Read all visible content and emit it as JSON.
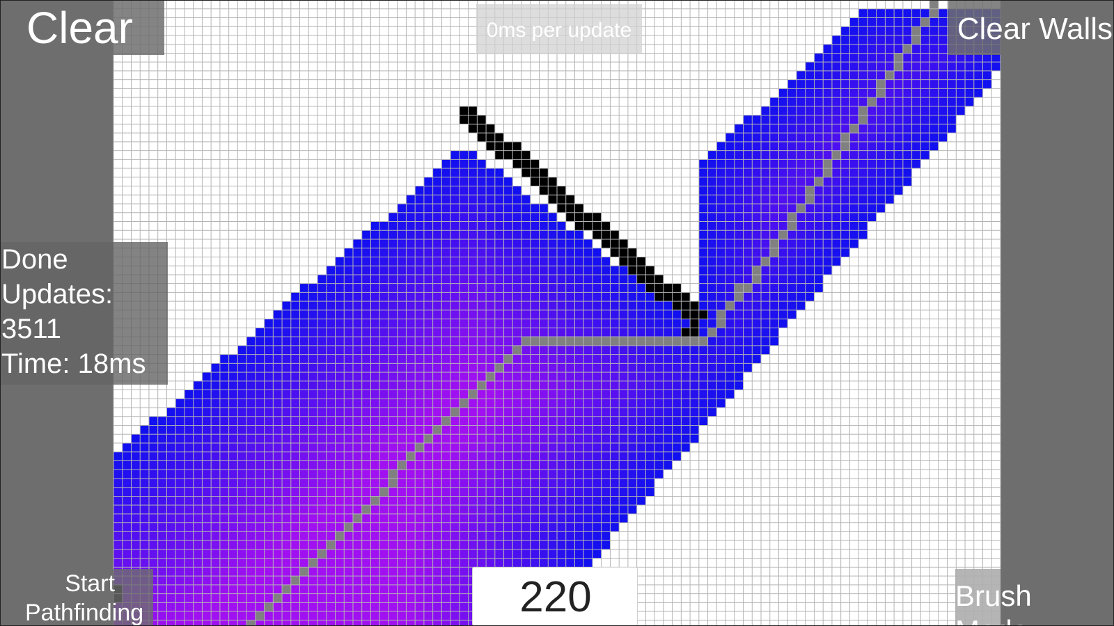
{
  "app": {
    "clear_label": "Clear",
    "speed_label": "0ms per update",
    "clear_walls_label": "Clear Walls",
    "status": {
      "line1": "Done",
      "line2": "Updates:",
      "line3": "3511",
      "line4": "Time: 18ms"
    },
    "start_label_1": "Start",
    "start_label_2": "Pathfinding",
    "brush_size_value": "220",
    "brush_mode_label": "Brush Mode"
  },
  "colors": {
    "panel": "#6e6e6e",
    "grid_line": "#b4b4b4",
    "explored_near": "#1010f0",
    "explored_far": "#a010f0",
    "wall": "#000000",
    "path": "#808080"
  }
}
